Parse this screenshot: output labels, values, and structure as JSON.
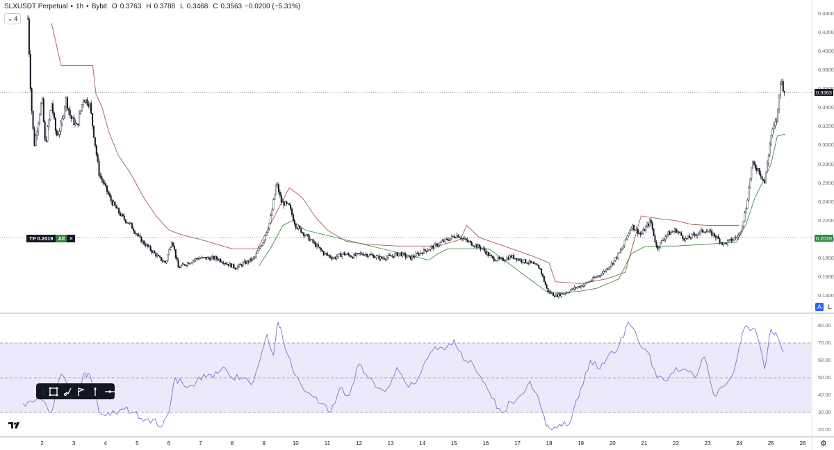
{
  "header": {
    "symbol": "SLXUSDT Perpetual",
    "interval": "1h",
    "exchange": "Bybit",
    "dot": "•",
    "open_key": "O",
    "open": "0.3763",
    "high_key": "H",
    "high": "0.3788",
    "low_key": "L",
    "low": "0.3468",
    "close_key": "C",
    "close": "0.3563",
    "change": "−0.0200 (−5.31%)"
  },
  "indicators_toggle": {
    "count": "4"
  },
  "price_scale": {
    "labels": [
      "0.4400",
      "0.4200",
      "0.4000",
      "0.3800",
      "0.3600",
      "0.3400",
      "0.3200",
      "0.3000",
      "0.2800",
      "0.2600",
      "0.2400",
      "0.2200",
      "0.2000",
      "0.1800",
      "0.1600",
      "0.1400"
    ],
    "last_price": "0.3563",
    "tp_price": "0.2019",
    "auto_label": "A",
    "log_label": "L"
  },
  "tp_order": {
    "label": "TP 0.2019",
    "qty": "All",
    "close": "✕"
  },
  "rsi_scale": {
    "labels": [
      "80.00",
      "70.00",
      "60.00",
      "50.00",
      "40.00",
      "30.00",
      "20.00"
    ]
  },
  "time_axis": [
    "2",
    "3",
    "4",
    "5",
    "6",
    "7",
    "8",
    "9",
    "10",
    "11",
    "12",
    "13",
    "14",
    "15",
    "16",
    "17",
    "18",
    "19",
    "20",
    "21",
    "22",
    "23",
    "24",
    "25",
    "26"
  ],
  "toolbar": {
    "icons": [
      "rectangle-icon",
      "brush-icon",
      "flag-icon",
      "line-icon"
    ]
  },
  "logo_text": "TV",
  "colors": {
    "candle": "#131722",
    "stop_upper": "#a45a52",
    "stop_lower": "#3f8a44",
    "rsi_line": "#7e72c6",
    "rsi_band": "#ede9fb",
    "tp_green": "#2e8b3c"
  },
  "chart_data": [
    {
      "type": "candlestick",
      "ylim": [
        0.135,
        0.445
      ],
      "x_range": [
        1.4,
        26.0
      ],
      "last_price": 0.3563,
      "tp_level": 0.2019,
      "price_path": [
        [
          1.55,
          0.435
        ],
        [
          1.65,
          0.35
        ],
        [
          1.75,
          0.3
        ],
        [
          1.9,
          0.33
        ],
        [
          2.0,
          0.35
        ],
        [
          2.1,
          0.3
        ],
        [
          2.3,
          0.345
        ],
        [
          2.45,
          0.31
        ],
        [
          2.6,
          0.32
        ],
        [
          2.75,
          0.35
        ],
        [
          2.9,
          0.33
        ],
        [
          3.1,
          0.32
        ],
        [
          3.3,
          0.35
        ],
        [
          3.5,
          0.345
        ],
        [
          3.7,
          0.295
        ],
        [
          3.8,
          0.27
        ],
        [
          4.0,
          0.255
        ],
        [
          4.2,
          0.24
        ],
        [
          4.5,
          0.225
        ],
        [
          4.8,
          0.215
        ],
        [
          5.1,
          0.2
        ],
        [
          5.4,
          0.19
        ],
        [
          5.7,
          0.18
        ],
        [
          5.9,
          0.175
        ],
        [
          6.1,
          0.2
        ],
        [
          6.3,
          0.17
        ],
        [
          6.6,
          0.175
        ],
        [
          6.9,
          0.18
        ],
        [
          7.2,
          0.18
        ],
        [
          7.5,
          0.18
        ],
        [
          7.8,
          0.175
        ],
        [
          8.1,
          0.17
        ],
        [
          8.4,
          0.175
        ],
        [
          8.7,
          0.18
        ],
        [
          9.0,
          0.2
        ],
        [
          9.2,
          0.22
        ],
        [
          9.4,
          0.26
        ],
        [
          9.55,
          0.24
        ],
        [
          9.8,
          0.235
        ],
        [
          10.0,
          0.215
        ],
        [
          10.3,
          0.205
        ],
        [
          10.6,
          0.195
        ],
        [
          10.9,
          0.185
        ],
        [
          11.2,
          0.18
        ],
        [
          11.5,
          0.185
        ],
        [
          11.8,
          0.182
        ],
        [
          12.1,
          0.185
        ],
        [
          12.4,
          0.183
        ],
        [
          12.7,
          0.18
        ],
        [
          13.0,
          0.182
        ],
        [
          13.3,
          0.185
        ],
        [
          13.6,
          0.18
        ],
        [
          13.9,
          0.185
        ],
        [
          14.2,
          0.19
        ],
        [
          14.5,
          0.195
        ],
        [
          14.8,
          0.2
        ],
        [
          15.1,
          0.205
        ],
        [
          15.3,
          0.2
        ],
        [
          15.6,
          0.195
        ],
        [
          15.9,
          0.19
        ],
        [
          16.2,
          0.18
        ],
        [
          16.5,
          0.178
        ],
        [
          16.8,
          0.182
        ],
        [
          17.1,
          0.178
        ],
        [
          17.4,
          0.175
        ],
        [
          17.7,
          0.17
        ],
        [
          17.95,
          0.145
        ],
        [
          18.2,
          0.14
        ],
        [
          18.5,
          0.143
        ],
        [
          18.8,
          0.148
        ],
        [
          19.1,
          0.152
        ],
        [
          19.4,
          0.158
        ],
        [
          19.7,
          0.165
        ],
        [
          20.0,
          0.175
        ],
        [
          20.3,
          0.19
        ],
        [
          20.6,
          0.215
        ],
        [
          20.9,
          0.205
        ],
        [
          21.2,
          0.22
        ],
        [
          21.4,
          0.19
        ],
        [
          21.7,
          0.205
        ],
        [
          22.0,
          0.21
        ],
        [
          22.3,
          0.2
        ],
        [
          22.6,
          0.205
        ],
        [
          22.9,
          0.21
        ],
        [
          23.2,
          0.205
        ],
        [
          23.5,
          0.195
        ],
        [
          23.8,
          0.2
        ],
        [
          24.0,
          0.205
        ],
        [
          24.2,
          0.23
        ],
        [
          24.4,
          0.28
        ],
        [
          24.6,
          0.275
        ],
        [
          24.8,
          0.26
        ],
        [
          25.0,
          0.31
        ],
        [
          25.2,
          0.33
        ],
        [
          25.3,
          0.37
        ],
        [
          25.45,
          0.356
        ]
      ],
      "stop_upper": [
        [
          2.3,
          0.43
        ],
        [
          2.6,
          0.385
        ],
        [
          3.6,
          0.385
        ],
        [
          3.7,
          0.355
        ],
        [
          3.9,
          0.34
        ],
        [
          4.1,
          0.315
        ],
        [
          4.4,
          0.29
        ],
        [
          4.8,
          0.27
        ],
        [
          5.2,
          0.245
        ],
        [
          5.6,
          0.225
        ],
        [
          6.0,
          0.21
        ],
        [
          6.4,
          0.205
        ],
        [
          7.0,
          0.2
        ],
        [
          8.0,
          0.19
        ],
        [
          8.8,
          0.19
        ],
        [
          9.8,
          0.255
        ],
        [
          10.2,
          0.245
        ],
        [
          10.6,
          0.225
        ],
        [
          11.0,
          0.21
        ],
        [
          11.6,
          0.198
        ],
        [
          12.2,
          0.195
        ],
        [
          13.2,
          0.193
        ],
        [
          14.5,
          0.193
        ],
        [
          15.2,
          0.2
        ],
        [
          15.4,
          0.215
        ],
        [
          15.8,
          0.202
        ],
        [
          16.4,
          0.195
        ],
        [
          17.0,
          0.188
        ],
        [
          17.5,
          0.182
        ],
        [
          18.0,
          0.175
        ],
        [
          18.2,
          0.155
        ],
        [
          19.0,
          0.153
        ],
        [
          19.8,
          0.158
        ],
        [
          20.4,
          0.165
        ],
        [
          20.9,
          0.225
        ],
        [
          21.5,
          0.222
        ],
        [
          22.0,
          0.22
        ],
        [
          22.5,
          0.216
        ],
        [
          23.0,
          0.215
        ],
        [
          24.0,
          0.215
        ]
      ],
      "stop_lower": [
        [
          8.85,
          0.172
        ],
        [
          9.0,
          0.18
        ],
        [
          9.2,
          0.19
        ],
        [
          9.6,
          0.215
        ],
        [
          9.9,
          0.22
        ],
        [
          10.1,
          0.215
        ],
        [
          10.3,
          0.21
        ],
        [
          14.2,
          0.178
        ],
        [
          14.5,
          0.185
        ],
        [
          14.8,
          0.19
        ],
        [
          15.3,
          0.19
        ],
        [
          16.1,
          0.19
        ],
        [
          17.9,
          0.145
        ],
        [
          18.4,
          0.143
        ],
        [
          19.0,
          0.145
        ],
        [
          19.5,
          0.148
        ],
        [
          20.2,
          0.158
        ],
        [
          20.6,
          0.185
        ],
        [
          21.0,
          0.192
        ],
        [
          21.5,
          0.193
        ],
        [
          22.0,
          0.193
        ],
        [
          23.0,
          0.195
        ],
        [
          23.9,
          0.197
        ],
        [
          24.2,
          0.215
        ],
        [
          24.5,
          0.245
        ],
        [
          24.8,
          0.265
        ],
        [
          25.0,
          0.28
        ],
        [
          25.2,
          0.31
        ],
        [
          25.45,
          0.312
        ]
      ]
    },
    {
      "type": "line",
      "ylim": [
        15,
        86
      ],
      "bands": {
        "upper": 70,
        "middle": 50,
        "lower": 30
      },
      "series": [
        {
          "values": [
            [
              1.4,
              35
            ],
            [
              1.7,
              36
            ],
            [
              2.0,
              37
            ],
            [
              2.3,
              30
            ],
            [
              2.6,
              52
            ],
            [
              2.9,
              42
            ],
            [
              3.1,
              40
            ],
            [
              3.3,
              52
            ],
            [
              3.5,
              52
            ],
            [
              3.8,
              30
            ],
            [
              4.0,
              28
            ],
            [
              4.3,
              30
            ],
            [
              4.6,
              32
            ],
            [
              4.9,
              30
            ],
            [
              5.2,
              25
            ],
            [
              5.5,
              26
            ],
            [
              5.8,
              22
            ],
            [
              6.0,
              30
            ],
            [
              6.2,
              50
            ],
            [
              6.5,
              45
            ],
            [
              6.8,
              45
            ],
            [
              7.1,
              52
            ],
            [
              7.4,
              50
            ],
            [
              7.7,
              56
            ],
            [
              8.0,
              50
            ],
            [
              8.3,
              50
            ],
            [
              8.6,
              46
            ],
            [
              8.9,
              62
            ],
            [
              9.1,
              75
            ],
            [
              9.3,
              63
            ],
            [
              9.45,
              82
            ],
            [
              9.6,
              72
            ],
            [
              9.9,
              55
            ],
            [
              10.2,
              45
            ],
            [
              10.5,
              40
            ],
            [
              10.8,
              35
            ],
            [
              11.1,
              30
            ],
            [
              11.4,
              44
            ],
            [
              11.7,
              40
            ],
            [
              12.0,
              58
            ],
            [
              12.3,
              50
            ],
            [
              12.6,
              44
            ],
            [
              12.9,
              44
            ],
            [
              13.2,
              56
            ],
            [
              13.5,
              46
            ],
            [
              13.8,
              47
            ],
            [
              14.1,
              60
            ],
            [
              14.4,
              68
            ],
            [
              14.7,
              66
            ],
            [
              15.0,
              72
            ],
            [
              15.3,
              60
            ],
            [
              15.6,
              58
            ],
            [
              15.9,
              48
            ],
            [
              16.2,
              38
            ],
            [
              16.5,
              30
            ],
            [
              16.8,
              36
            ],
            [
              17.1,
              40
            ],
            [
              17.4,
              48
            ],
            [
              17.7,
              36
            ],
            [
              17.9,
              22
            ],
            [
              18.1,
              20
            ],
            [
              18.4,
              22
            ],
            [
              18.7,
              26
            ],
            [
              19.0,
              44
            ],
            [
              19.3,
              60
            ],
            [
              19.6,
              55
            ],
            [
              19.9,
              64
            ],
            [
              20.2,
              68
            ],
            [
              20.5,
              82
            ],
            [
              20.8,
              72
            ],
            [
              21.1,
              65
            ],
            [
              21.4,
              50
            ],
            [
              21.7,
              48
            ],
            [
              22.0,
              56
            ],
            [
              22.3,
              55
            ],
            [
              22.6,
              50
            ],
            [
              22.9,
              62
            ],
            [
              23.2,
              40
            ],
            [
              23.5,
              45
            ],
            [
              23.8,
              52
            ],
            [
              24.0,
              68
            ],
            [
              24.2,
              80
            ],
            [
              24.5,
              78
            ],
            [
              24.8,
              55
            ],
            [
              25.0,
              78
            ],
            [
              25.2,
              74
            ],
            [
              25.4,
              65
            ]
          ]
        }
      ]
    }
  ]
}
